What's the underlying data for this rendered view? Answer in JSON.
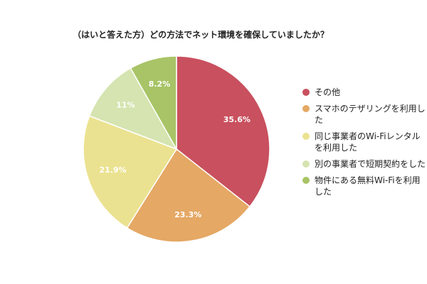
{
  "chart_data": {
    "type": "pie",
    "title": "（はいと答えた方）どの方法でネット環境を確保していましたか？",
    "categories": [
      "その他",
      "スマホのテザリングを利用した",
      "同じ事業者のWi-Fiレンタルを利用した",
      "別の事業者で短期契約をした",
      "物件にある無料Wi-Fiを利用した"
    ],
    "values": [
      35.6,
      23.3,
      21.9,
      11,
      8.2
    ],
    "value_labels": [
      "35.6%",
      "23.3%",
      "21.9%",
      "11%",
      "8.2%"
    ],
    "colors": [
      "#c9505e",
      "#e5a865",
      "#ebe291",
      "#d5e4b0",
      "#a8c467"
    ],
    "legend": "right"
  }
}
